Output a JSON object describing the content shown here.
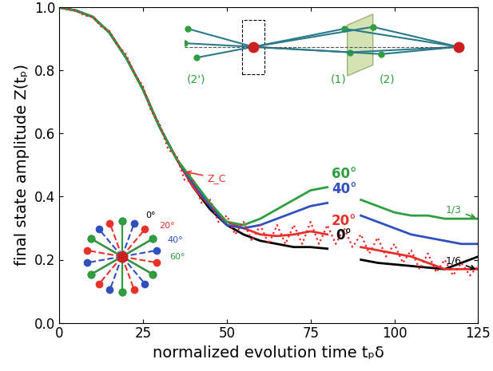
{
  "chart_data": {
    "type": "line",
    "xlabel": "normalized evolution time tₚδ",
    "ylabel": "final state amplitude Z(tₚ)",
    "xlim": [
      0,
      125
    ],
    "ylim": [
      0.0,
      1.0
    ],
    "xticks": [
      0,
      25,
      50,
      75,
      100,
      125
    ],
    "yticks": [
      0.0,
      0.2,
      0.4,
      0.6,
      0.8,
      1.0
    ],
    "grid": false,
    "series": [
      {
        "name": "0°",
        "color": "#000000",
        "line_style": "solid",
        "x": [
          0,
          5,
          10,
          15,
          20,
          25,
          30,
          35,
          40,
          45,
          50,
          55,
          60,
          65,
          70,
          75,
          80,
          85,
          90,
          95,
          100,
          105,
          110,
          115,
          120,
          125
        ],
        "values": [
          1.0,
          0.99,
          0.97,
          0.92,
          0.84,
          0.74,
          0.62,
          0.52,
          0.43,
          0.36,
          0.31,
          0.28,
          0.26,
          0.25,
          0.24,
          0.24,
          0.235,
          null,
          0.2,
          0.19,
          0.185,
          0.18,
          0.175,
          0.17,
          0.19,
          0.21
        ]
      },
      {
        "name": "20°",
        "color": "#e8312a",
        "line_style": "solid",
        "x": [
          0,
          5,
          10,
          15,
          20,
          25,
          30,
          35,
          40,
          45,
          50,
          55,
          60,
          65,
          70,
          75,
          80,
          85,
          90,
          95,
          100,
          105,
          110,
          115,
          120,
          125
        ],
        "values": [
          1.0,
          0.99,
          0.97,
          0.92,
          0.84,
          0.74,
          0.62,
          0.52,
          0.43,
          0.37,
          0.32,
          0.3,
          0.28,
          0.275,
          0.28,
          0.29,
          0.28,
          null,
          0.24,
          0.23,
          0.22,
          0.21,
          0.19,
          0.17,
          0.17,
          0.17
        ]
      },
      {
        "name": "40°",
        "color": "#3050c0",
        "line_style": "solid",
        "x": [
          0,
          5,
          10,
          15,
          20,
          25,
          30,
          35,
          40,
          45,
          50,
          55,
          60,
          65,
          70,
          75,
          80,
          85,
          90,
          95,
          100,
          105,
          110,
          115,
          120,
          125
        ],
        "values": [
          1.0,
          0.99,
          0.97,
          0.92,
          0.84,
          0.74,
          0.62,
          0.52,
          0.44,
          0.37,
          0.31,
          0.3,
          0.31,
          0.33,
          0.35,
          0.37,
          0.38,
          null,
          0.34,
          0.32,
          0.3,
          0.28,
          0.27,
          0.26,
          0.25,
          0.25
        ]
      },
      {
        "name": "60°",
        "color": "#2e9e3e",
        "line_style": "solid",
        "x": [
          0,
          5,
          10,
          15,
          20,
          25,
          30,
          35,
          40,
          45,
          50,
          55,
          60,
          65,
          70,
          75,
          80,
          85,
          90,
          95,
          100,
          105,
          110,
          115,
          120,
          125
        ],
        "values": [
          1.0,
          0.99,
          0.97,
          0.92,
          0.84,
          0.74,
          0.62,
          0.52,
          0.45,
          0.38,
          0.32,
          0.31,
          0.33,
          0.36,
          0.39,
          0.42,
          0.43,
          null,
          0.39,
          0.37,
          0.35,
          0.34,
          0.34,
          0.33,
          0.33,
          0.33
        ]
      },
      {
        "color": "#ee2020",
        "line_style": "dotted",
        "x": [
          0,
          2.5,
          5,
          7.5,
          10,
          12.5,
          15,
          17.5,
          20,
          22.5,
          25,
          27.5,
          30,
          32.5,
          35,
          37.5,
          40,
          42.5,
          45,
          47.5,
          50,
          52.5,
          55,
          57.5,
          60,
          62.5,
          65,
          67.5,
          70,
          72.5,
          75,
          77.5,
          80,
          82.5,
          85,
          87.5,
          90,
          92.5,
          95,
          97.5,
          100,
          102.5,
          105,
          107.5,
          110,
          112.5,
          115,
          117.5,
          120,
          122.5,
          125
        ],
        "values": [
          1.0,
          0.995,
          0.99,
          0.975,
          0.97,
          0.94,
          0.925,
          0.88,
          0.85,
          0.79,
          0.75,
          0.67,
          0.63,
          0.55,
          0.53,
          0.45,
          0.45,
          0.38,
          0.39,
          0.32,
          0.34,
          0.28,
          0.32,
          0.26,
          0.31,
          0.25,
          0.31,
          0.25,
          0.31,
          0.25,
          0.32,
          0.25,
          0.31,
          0.25,
          0.3,
          0.24,
          0.28,
          0.22,
          0.27,
          0.21,
          0.25,
          0.19,
          0.23,
          0.17,
          0.22,
          0.16,
          0.2,
          0.15,
          0.19,
          0.15,
          0.18
        ]
      }
    ],
    "annotations": [
      {
        "text": "Z_C",
        "x": 37,
        "y": 0.48,
        "color": "#e8312a"
      },
      {
        "text": "1/3",
        "x": 125,
        "y": 0.33,
        "color": "#2e9e3e"
      },
      {
        "text": "1/6",
        "x": 125,
        "y": 0.167,
        "color": "#000000"
      }
    ],
    "inset": {
      "cones": [
        "(2')",
        "(1)",
        "(2)"
      ],
      "star": [
        "0°",
        "20°",
        "40°",
        "60°"
      ]
    }
  }
}
